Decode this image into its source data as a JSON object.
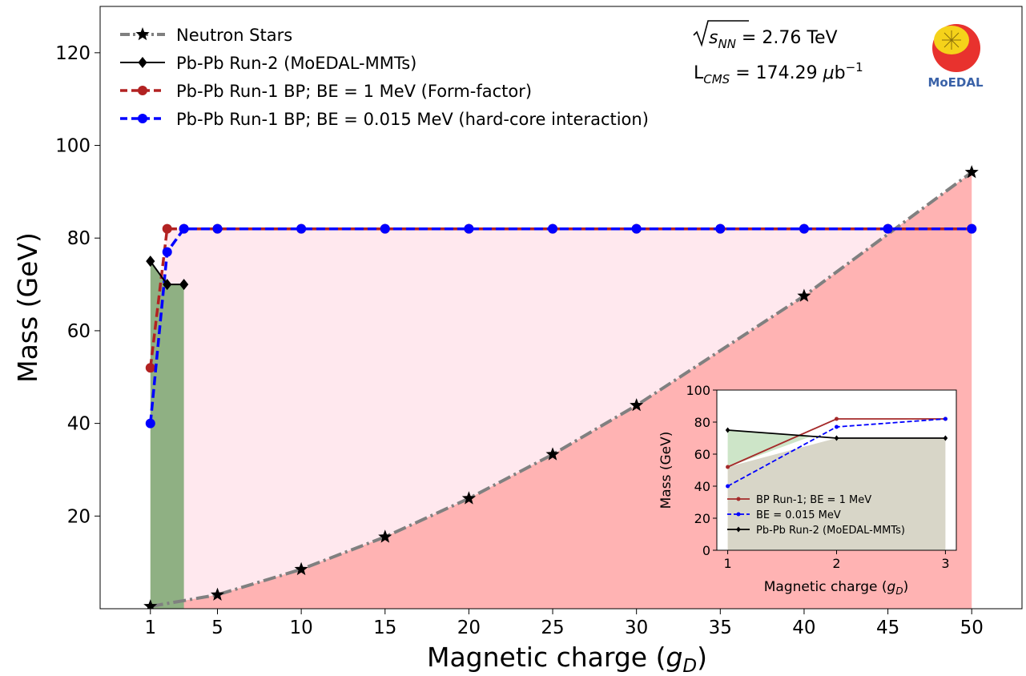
{
  "chart_data": {
    "type": "line",
    "xlabel": "Magnetic charge (g_D)",
    "ylabel": "Mass (GeV)",
    "xlim": [
      -2,
      53
    ],
    "ylim": [
      0,
      130
    ],
    "x_ticks": [
      1,
      5,
      10,
      15,
      20,
      25,
      30,
      35,
      40,
      45,
      50
    ],
    "y_ticks": [
      20,
      40,
      60,
      80,
      100,
      120
    ],
    "annotations": {
      "energy": "√s_NN = 2.76 TeV",
      "lumi": "L_CMS = 174.29 μb⁻¹",
      "logo": "MoEDAL"
    },
    "legend_position": "upper-left",
    "series": [
      {
        "name": "Neutron Stars",
        "style": "dashdot",
        "marker": "star",
        "color": "#808080",
        "x": [
          1,
          5,
          10,
          15,
          20,
          25,
          30,
          40,
          50
        ],
        "y": [
          0.5,
          3,
          8.5,
          15.5,
          23.8,
          33.3,
          43.9,
          67.5,
          94.2
        ]
      },
      {
        "name": "Pb-Pb Run-2 (MoEDAL-MMTs)",
        "style": "solid",
        "marker": "diamond",
        "color": "#000000",
        "x": [
          1,
          2,
          3
        ],
        "y": [
          75,
          70,
          70
        ]
      },
      {
        "name": "Pb-Pb Run-1 BP; BE = 1 MeV (Form-factor)",
        "style": "dashed",
        "marker": "circle",
        "color": "#b22222",
        "x": [
          1,
          2,
          3,
          5,
          10,
          15,
          20,
          25,
          30,
          35,
          40,
          45,
          50
        ],
        "y": [
          52,
          82,
          82,
          82,
          82,
          82,
          82,
          82,
          82,
          82,
          82,
          82,
          82
        ]
      },
      {
        "name": "Pb-Pb Run-1 BP; BE = 0.015 MeV (hard-core interaction)",
        "style": "dashed",
        "marker": "circle",
        "color": "#0000ff",
        "x": [
          1,
          2,
          3,
          5,
          10,
          15,
          20,
          25,
          30,
          35,
          40,
          45,
          50
        ],
        "y": [
          40,
          77,
          82,
          82,
          82,
          82,
          82,
          82,
          82,
          82,
          82,
          82,
          82
        ]
      }
    ],
    "fill_colors": {
      "run2_region": "#8fb083",
      "excluded_region": "#ffe8ee",
      "neutron_region": "#ffb3b3"
    },
    "inset": {
      "xlabel": "Magnetic charge (g_D)",
      "ylabel": "Mass (GeV)",
      "xlim": [
        0.9,
        3.1
      ],
      "ylim": [
        0,
        100
      ],
      "x_ticks": [
        1,
        2,
        3
      ],
      "y_ticks": [
        0,
        20,
        40,
        60,
        80,
        100
      ],
      "legend_position": "lower-left",
      "series": [
        {
          "name": "BP Run-1; BE = 1 MeV",
          "style": "solid",
          "color": "#a52a2a",
          "x": [
            1,
            2,
            3
          ],
          "y": [
            52,
            82,
            82
          ]
        },
        {
          "name": "BE = 0.015 MeV",
          "style": "dashed",
          "color": "#0000ff",
          "x": [
            1,
            2,
            3
          ],
          "y": [
            40,
            77,
            82
          ]
        },
        {
          "name": "Pb-Pb Run-2 (MoEDAL-MMTs)",
          "style": "solid",
          "color": "#000000",
          "x": [
            1,
            2,
            3
          ],
          "y": [
            75,
            70,
            70
          ]
        }
      ]
    }
  }
}
